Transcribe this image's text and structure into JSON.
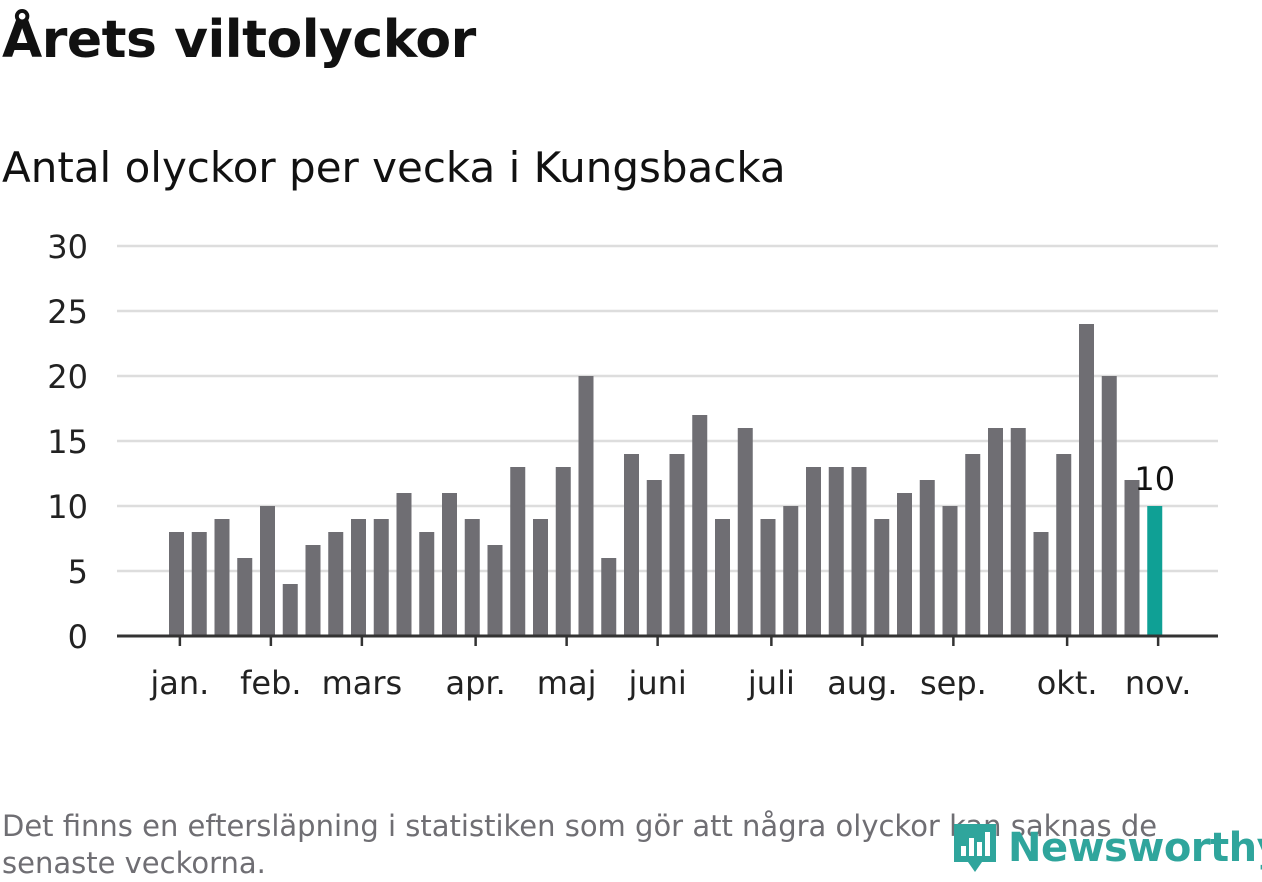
{
  "header": {
    "title": "Årets viltolyckor",
    "subtitle": "Antal olyckor per vecka i Kungsbacka"
  },
  "footnote": "Det finns en eftersläpning i statistiken som gör att några olyckor kan saknas de senaste veckorna.",
  "brand": {
    "name": "Newsworthy",
    "icon": "newsworthy-logo-icon"
  },
  "colors": {
    "bar": "#6f6e73",
    "highlight": "#0fa095",
    "grid": "#dddddd",
    "axis": "#333333",
    "brand": "#2fa59c"
  },
  "chart_data": {
    "type": "bar",
    "title": "Årets viltolyckor",
    "subtitle": "Antal olyckor per vecka i Kungsbacka",
    "xlabel": "",
    "ylabel": "",
    "ylim": [
      0,
      30
    ],
    "yticks": [
      0,
      5,
      10,
      15,
      20,
      25,
      30
    ],
    "grid": true,
    "values": [
      8,
      8,
      9,
      6,
      10,
      4,
      7,
      8,
      9,
      9,
      11,
      8,
      11,
      9,
      7,
      13,
      9,
      13,
      20,
      6,
      14,
      12,
      14,
      17,
      9,
      16,
      9,
      10,
      13,
      13,
      13,
      9,
      11,
      12,
      10,
      14,
      16,
      16,
      8,
      14,
      24,
      20,
      12,
      10
    ],
    "highlight_index": 43,
    "highlight_label": "10",
    "month_ticks": [
      {
        "label": "jan.",
        "bar": 0.5
      },
      {
        "label": "feb.",
        "bar": 4.5
      },
      {
        "label": "mars",
        "bar": 8.5
      },
      {
        "label": "apr.",
        "bar": 13.5
      },
      {
        "label": "maj",
        "bar": 17.5
      },
      {
        "label": "juni",
        "bar": 21.5
      },
      {
        "label": "juli",
        "bar": 26.5
      },
      {
        "label": "aug.",
        "bar": 30.5
      },
      {
        "label": "sep.",
        "bar": 34.5
      },
      {
        "label": "okt.",
        "bar": 39.5
      },
      {
        "label": "nov.",
        "bar": 43.5
      }
    ]
  }
}
